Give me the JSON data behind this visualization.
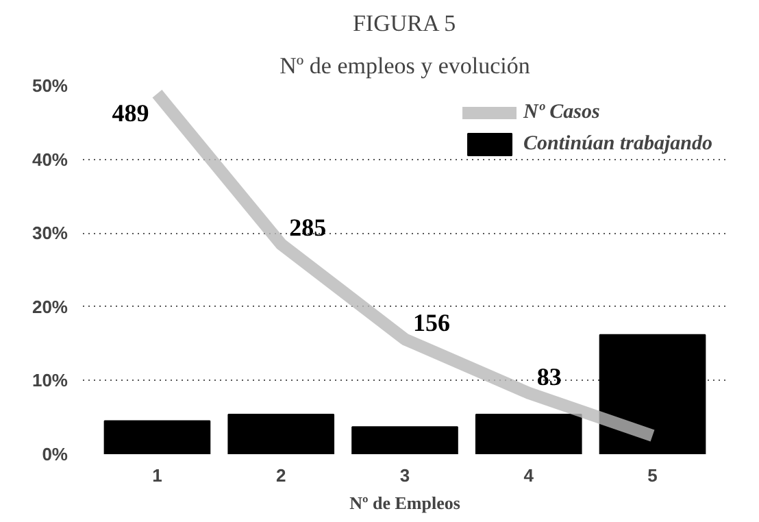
{
  "chart_data": {
    "type": "bar",
    "title": "FIGURA 5",
    "subtitle": "Nº de empleos y evolución",
    "xlabel": "Nº de Empleos",
    "categories": [
      "1",
      "2",
      "3",
      "4",
      "5"
    ],
    "series": [
      {
        "name": "Nº Casos",
        "type": "line",
        "color": "#b8b8b8",
        "values": [
          48.9,
          28.5,
          15.6,
          8.3,
          2.5
        ]
      },
      {
        "name": "Continúan trabajando",
        "color": "#000000",
        "values": [
          4.5,
          5.4,
          3.7,
          5.4,
          16.2
        ]
      }
    ],
    "annotations": [
      {
        "text": "489",
        "x": "1",
        "y": 48.9
      },
      {
        "text": "285",
        "x": "2",
        "y": 28.5
      },
      {
        "text": "156",
        "x": "3",
        "y": 15.6
      },
      {
        "text": "83",
        "x": "4",
        "y": 8.3
      }
    ],
    "ylim": [
      0,
      50
    ],
    "yticks": [
      {
        "value": 0,
        "label": "0%"
      },
      {
        "value": 10,
        "label": "10%"
      },
      {
        "value": 20,
        "label": "20%"
      },
      {
        "value": 30,
        "label": "30%"
      },
      {
        "value": 40,
        "label": "40%"
      },
      {
        "value": 50,
        "label": "50%"
      }
    ],
    "grid": "y",
    "legend": "top right"
  }
}
